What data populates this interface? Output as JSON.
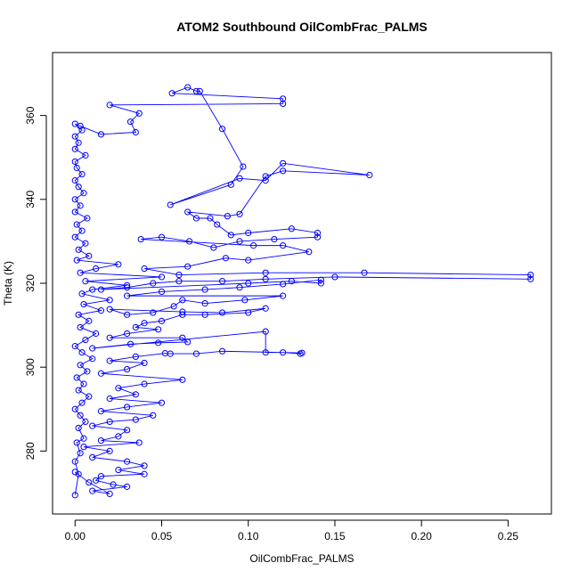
{
  "chart_data": {
    "type": "line",
    "title": "ATOM2 Southbound OilCombFrac_PALMS",
    "xlabel": "OilCombFrac_PALMS",
    "ylabel": "Theta (K)",
    "xlim": [
      -0.013,
      0.275
    ],
    "ylim": [
      265,
      375
    ],
    "x_ticks": [
      0.0,
      0.05,
      0.1,
      0.15,
      0.2,
      0.25
    ],
    "x_tick_labels": [
      "0.00",
      "0.05",
      "0.10",
      "0.15",
      "0.20",
      "0.25"
    ],
    "y_ticks": [
      280,
      300,
      320,
      340,
      360
    ],
    "y_tick_labels": [
      "280",
      "300",
      "320",
      "340",
      "360"
    ],
    "grid": false,
    "series": [
      {
        "color": "#0000ff",
        "marker": "open-circle",
        "connected": true,
        "points": [
          [
            0.0,
            269.5
          ],
          [
            0.002,
            274.5
          ],
          [
            0.0,
            277.5
          ],
          [
            0.003,
            279.5
          ],
          [
            0.001,
            282.0
          ],
          [
            0.005,
            283.0
          ],
          [
            0.002,
            285.5
          ],
          [
            0.006,
            287.0
          ],
          [
            0.003,
            288.5
          ],
          [
            0.0,
            290.0
          ],
          [
            0.004,
            291.5
          ],
          [
            0.008,
            293.0
          ],
          [
            0.002,
            294.5
          ],
          [
            0.005,
            296.0
          ],
          [
            0.001,
            297.5
          ],
          [
            0.007,
            299.0
          ],
          [
            0.003,
            300.5
          ],
          [
            0.01,
            302.0
          ],
          [
            0.004,
            303.5
          ],
          [
            0.0,
            305.0
          ],
          [
            0.006,
            306.5
          ],
          [
            0.012,
            308.0
          ],
          [
            0.003,
            309.5
          ],
          [
            0.008,
            311.0
          ],
          [
            0.002,
            312.5
          ],
          [
            0.015,
            313.5
          ],
          [
            0.005,
            315.0
          ],
          [
            0.02,
            316.0
          ],
          [
            0.004,
            317.5
          ],
          [
            0.01,
            318.5
          ],
          [
            0.03,
            319.5
          ],
          [
            0.006,
            320.5
          ],
          [
            0.05,
            321.5
          ],
          [
            0.003,
            322.5
          ],
          [
            0.012,
            323.5
          ],
          [
            0.025,
            324.5
          ],
          [
            0.001,
            325.5
          ],
          [
            0.008,
            326.5
          ],
          [
            0.002,
            328.0
          ],
          [
            0.006,
            329.5
          ],
          [
            0.0,
            331.0
          ],
          [
            0.004,
            332.5
          ],
          [
            0.001,
            334.0
          ],
          [
            0.007,
            335.5
          ],
          [
            0.0,
            337.0
          ],
          [
            0.003,
            338.5
          ],
          [
            0.0,
            340.0
          ],
          [
            0.005,
            341.5
          ],
          [
            0.002,
            343.0
          ],
          [
            0.0,
            344.5
          ],
          [
            0.004,
            346.0
          ],
          [
            0.001,
            347.5
          ],
          [
            0.0,
            349.0
          ],
          [
            0.006,
            350.5
          ],
          [
            0.0,
            352.0
          ],
          [
            0.002,
            353.5
          ],
          [
            0.0,
            355.0
          ],
          [
            0.004,
            356.5
          ],
          [
            0.0,
            358.0
          ],
          [
            0.003,
            357.5
          ],
          [
            0.015,
            355.5
          ],
          [
            0.035,
            356.0
          ],
          [
            0.032,
            358.5
          ],
          [
            0.037,
            360.5
          ],
          [
            0.02,
            362.5
          ],
          [
            0.12,
            362.8
          ],
          [
            0.12,
            364.0
          ],
          [
            0.056,
            365.3
          ],
          [
            0.065,
            366.7
          ],
          [
            0.07,
            365.8
          ],
          [
            0.072,
            365.8
          ],
          [
            0.085,
            356.8
          ],
          [
            0.097,
            347.8
          ],
          [
            0.09,
            343.5
          ],
          [
            0.055,
            338.7
          ],
          [
            0.095,
            345.0
          ],
          [
            0.11,
            344.5
          ],
          [
            0.12,
            348.6
          ],
          [
            0.17,
            345.8
          ],
          [
            0.12,
            346.8
          ],
          [
            0.11,
            345.5
          ],
          [
            0.095,
            336.5
          ],
          [
            0.088,
            336.0
          ],
          [
            0.065,
            337.0
          ],
          [
            0.07,
            335.5
          ],
          [
            0.078,
            335.5
          ],
          [
            0.082,
            334.0
          ],
          [
            0.09,
            331.5
          ],
          [
            0.1,
            332.0
          ],
          [
            0.125,
            333.0
          ],
          [
            0.14,
            332.0
          ],
          [
            0.14,
            331.0
          ],
          [
            0.115,
            330.5
          ],
          [
            0.095,
            330.0
          ],
          [
            0.08,
            328.5
          ],
          [
            0.066,
            330.0
          ],
          [
            0.05,
            331.0
          ],
          [
            0.038,
            330.5
          ],
          [
            0.103,
            329.0
          ],
          [
            0.12,
            329.0
          ],
          [
            0.135,
            327.5
          ],
          [
            0.1,
            325.5
          ],
          [
            0.087,
            326.0
          ],
          [
            0.065,
            324.0
          ],
          [
            0.04,
            323.5
          ],
          [
            0.06,
            322.0
          ],
          [
            0.11,
            322.5
          ],
          [
            0.167,
            322.5
          ],
          [
            0.263,
            322.0
          ],
          [
            0.263,
            321.0
          ],
          [
            0.15,
            321.5
          ],
          [
            0.11,
            321.0
          ],
          [
            0.085,
            320.5
          ],
          [
            0.06,
            320.5
          ],
          [
            0.045,
            320.0
          ],
          [
            0.03,
            319.0
          ],
          [
            0.015,
            318.5
          ],
          [
            0.1,
            320.0
          ],
          [
            0.125,
            320.5
          ],
          [
            0.142,
            320.0
          ],
          [
            0.142,
            320.8
          ],
          [
            0.12,
            319.8
          ],
          [
            0.095,
            319.0
          ],
          [
            0.075,
            318.5
          ],
          [
            0.05,
            318.0
          ],
          [
            0.03,
            317.0
          ],
          [
            0.12,
            317.0
          ],
          [
            0.098,
            316.0
          ],
          [
            0.075,
            315.2
          ],
          [
            0.062,
            316.0
          ],
          [
            0.057,
            314.5
          ],
          [
            0.045,
            313.0
          ],
          [
            0.03,
            312.5
          ],
          [
            0.02,
            313.8
          ],
          [
            0.062,
            313.2
          ],
          [
            0.085,
            313.0
          ],
          [
            0.11,
            314.0
          ],
          [
            0.1,
            313.0
          ],
          [
            0.075,
            312.5
          ],
          [
            0.062,
            312.5
          ],
          [
            0.05,
            311.0
          ],
          [
            0.04,
            310.5
          ],
          [
            0.035,
            309.5
          ],
          [
            0.048,
            309.0
          ],
          [
            0.03,
            308.0
          ],
          [
            0.02,
            307.0
          ],
          [
            0.062,
            307.0
          ],
          [
            0.065,
            306.0
          ],
          [
            0.048,
            305.8
          ],
          [
            0.032,
            305.5
          ],
          [
            0.01,
            304.5
          ],
          [
            0.11,
            308.5
          ],
          [
            0.11,
            303.5
          ],
          [
            0.12,
            303.5
          ],
          [
            0.13,
            303.2
          ],
          [
            0.131,
            303.4
          ],
          [
            0.085,
            303.8
          ],
          [
            0.07,
            303.2
          ],
          [
            0.055,
            303.2
          ],
          [
            0.052,
            303.3
          ],
          [
            0.035,
            302.5
          ],
          [
            0.02,
            301.5
          ],
          [
            0.04,
            301.0
          ],
          [
            0.03,
            299.5
          ],
          [
            0.015,
            298.5
          ],
          [
            0.062,
            297.0
          ],
          [
            0.04,
            296.0
          ],
          [
            0.025,
            295.0
          ],
          [
            0.035,
            293.5
          ],
          [
            0.02,
            292.5
          ],
          [
            0.05,
            291.5
          ],
          [
            0.03,
            290.5
          ],
          [
            0.015,
            289.5
          ],
          [
            0.045,
            288.5
          ],
          [
            0.035,
            287.5
          ],
          [
            0.02,
            287.0
          ],
          [
            0.01,
            286.0
          ],
          [
            0.03,
            285.0
          ],
          [
            0.025,
            283.5
          ],
          [
            0.015,
            282.5
          ],
          [
            0.037,
            282.0
          ],
          [
            0.005,
            281.0
          ],
          [
            0.02,
            280.0
          ],
          [
            0.01,
            278.5
          ],
          [
            0.03,
            277.5
          ],
          [
            0.04,
            276.5
          ],
          [
            0.025,
            275.5
          ],
          [
            0.04,
            274.5
          ],
          [
            0.015,
            274.0
          ],
          [
            0.012,
            273.0
          ],
          [
            0.022,
            272.0
          ],
          [
            0.03,
            271.5
          ],
          [
            0.01,
            270.5
          ],
          [
            0.02,
            269.8
          ],
          [
            0.008,
            272.5
          ],
          [
            0.0,
            275.0
          ]
        ]
      }
    ]
  }
}
